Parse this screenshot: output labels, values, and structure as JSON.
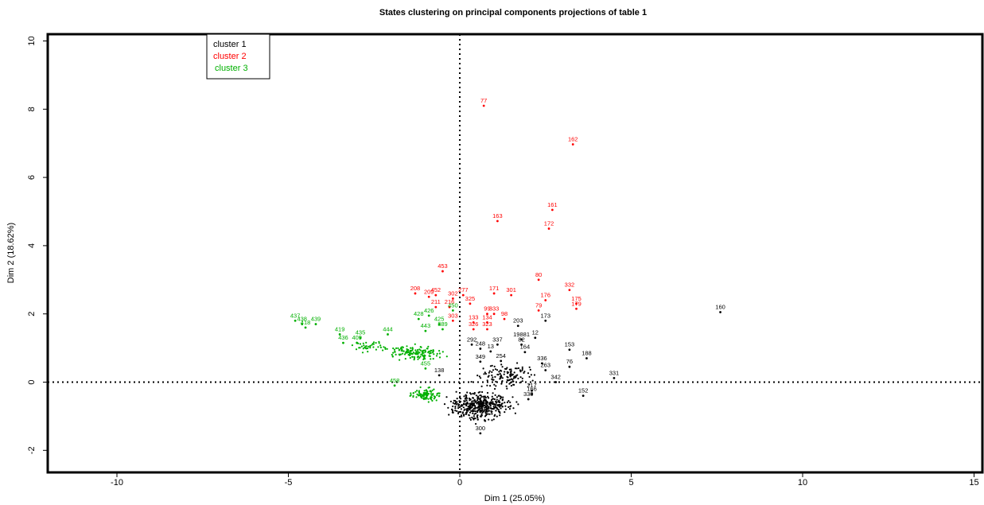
{
  "chart_data": {
    "type": "scatter",
    "title": "States clustering on principal components projections of table 1",
    "xlabel": "Dim 1 (25.05%)",
    "ylabel": "Dim 2 (18.62%)",
    "xlim": [
      -12,
      15
    ],
    "ylim": [
      -2.8,
      10.3
    ],
    "xticks": [
      -10,
      -5,
      0,
      5,
      10,
      15
    ],
    "yticks": [
      -2,
      0,
      2,
      4,
      6,
      8,
      10
    ],
    "legend_position": "top-left",
    "reference_lines": {
      "x": 0,
      "y": 0,
      "style": "dotted"
    },
    "colors": {
      "cluster 1": "#000000",
      "cluster 2": "#ff0000",
      "cluster 3": "#00b000"
    },
    "series": [
      {
        "name": "cluster 1",
        "color": "#000000",
        "points": [
          {
            "label": "160",
            "x": 7.6,
            "y": 2.05
          },
          {
            "label": "331",
            "x": 4.5,
            "y": 0.12
          },
          {
            "label": "152",
            "x": 3.6,
            "y": -0.4
          },
          {
            "label": "188",
            "x": 3.7,
            "y": 0.7
          },
          {
            "label": "153",
            "x": 3.2,
            "y": 0.95
          },
          {
            "label": "76",
            "x": 3.2,
            "y": 0.45
          },
          {
            "label": "342",
            "x": 2.8,
            "y": 0.0
          },
          {
            "label": "173",
            "x": 2.5,
            "y": 1.8
          },
          {
            "label": "12",
            "x": 2.2,
            "y": 1.3
          },
          {
            "label": "203",
            "x": 1.7,
            "y": 1.65
          },
          {
            "label": "19881",
            "x": 1.8,
            "y": 1.25
          },
          {
            "label": "82",
            "x": 1.8,
            "y": 1.1
          },
          {
            "label": "164",
            "x": 1.9,
            "y": 0.88
          },
          {
            "label": "337",
            "x": 1.1,
            "y": 1.1
          },
          {
            "label": "292",
            "x": 0.35,
            "y": 1.1
          },
          {
            "label": "248",
            "x": 0.6,
            "y": 0.98
          },
          {
            "label": "13",
            "x": 0.9,
            "y": 0.9
          },
          {
            "label": "254",
            "x": 1.2,
            "y": 0.62
          },
          {
            "label": "349",
            "x": 0.6,
            "y": 0.6
          },
          {
            "label": "263",
            "x": 2.5,
            "y": 0.35
          },
          {
            "label": "336",
            "x": 2.4,
            "y": 0.55
          },
          {
            "label": "330",
            "x": 2.0,
            "y": -0.5
          },
          {
            "label": "217",
            "x": 2.1,
            "y": -0.25
          },
          {
            "label": "166",
            "x": 2.1,
            "y": -0.35
          },
          {
            "label": "138",
            "x": -0.6,
            "y": 0.2
          },
          {
            "label": "300",
            "x": 0.6,
            "y": -1.5
          }
        ]
      },
      {
        "name": "cluster 2",
        "color": "#ff0000",
        "points": [
          {
            "label": "77",
            "x": 0.7,
            "y": 8.1
          },
          {
            "label": "162",
            "x": 3.3,
            "y": 6.97
          },
          {
            "label": "161",
            "x": 2.7,
            "y": 5.05
          },
          {
            "label": "163",
            "x": 1.1,
            "y": 4.72
          },
          {
            "label": "172",
            "x": 2.6,
            "y": 4.5
          },
          {
            "label": "453",
            "x": -0.5,
            "y": 3.25
          },
          {
            "label": "80",
            "x": 2.3,
            "y": 3.0
          },
          {
            "label": "332",
            "x": 3.2,
            "y": 2.7
          },
          {
            "label": "171",
            "x": 1.0,
            "y": 2.6
          },
          {
            "label": "301",
            "x": 1.5,
            "y": 2.55
          },
          {
            "label": "277",
            "x": 0.1,
            "y": 2.55
          },
          {
            "label": "208",
            "x": -1.3,
            "y": 2.6
          },
          {
            "label": "452",
            "x": -0.7,
            "y": 2.55
          },
          {
            "label": "209",
            "x": -0.9,
            "y": 2.5
          },
          {
            "label": "302",
            "x": -0.2,
            "y": 2.45
          },
          {
            "label": "176",
            "x": 2.5,
            "y": 2.4
          },
          {
            "label": "325",
            "x": 0.3,
            "y": 2.3
          },
          {
            "label": "211",
            "x": -0.7,
            "y": 2.2
          },
          {
            "label": "216",
            "x": -0.3,
            "y": 2.2
          },
          {
            "label": "175",
            "x": 3.4,
            "y": 2.3
          },
          {
            "label": "179",
            "x": 3.4,
            "y": 2.15
          },
          {
            "label": "79",
            "x": 2.3,
            "y": 2.1
          },
          {
            "label": "99",
            "x": 0.8,
            "y": 2.0
          },
          {
            "label": "333",
            "x": 1.0,
            "y": 2.0
          },
          {
            "label": "98",
            "x": 1.3,
            "y": 1.85
          },
          {
            "label": "303",
            "x": -0.2,
            "y": 1.8
          },
          {
            "label": "133",
            "x": 0.4,
            "y": 1.75
          },
          {
            "label": "134",
            "x": 0.8,
            "y": 1.75
          },
          {
            "label": "326",
            "x": 0.4,
            "y": 1.55
          },
          {
            "label": "323",
            "x": 0.8,
            "y": 1.55
          }
        ]
      },
      {
        "name": "cluster 3",
        "color": "#00b000",
        "points": [
          {
            "label": "437",
            "x": -4.8,
            "y": 1.8
          },
          {
            "label": "438",
            "x": -4.6,
            "y": 1.7
          },
          {
            "label": "418",
            "x": -4.5,
            "y": 1.6
          },
          {
            "label": "439",
            "x": -4.2,
            "y": 1.7
          },
          {
            "label": "419",
            "x": -3.5,
            "y": 1.4
          },
          {
            "label": "436",
            "x": -3.4,
            "y": 1.15
          },
          {
            "label": "435",
            "x": -2.9,
            "y": 1.3
          },
          {
            "label": "409",
            "x": -3.0,
            "y": 1.15
          },
          {
            "label": "428",
            "x": -1.2,
            "y": 1.85
          },
          {
            "label": "426",
            "x": -0.9,
            "y": 1.95
          },
          {
            "label": "450",
            "x": -0.2,
            "y": 2.1
          },
          {
            "label": "425",
            "x": -0.6,
            "y": 1.7
          },
          {
            "label": "443",
            "x": -1.0,
            "y": 1.5
          },
          {
            "label": "444",
            "x": -2.1,
            "y": 1.4
          },
          {
            "label": "389",
            "x": -0.5,
            "y": 1.55
          },
          {
            "label": "458",
            "x": -1.9,
            "y": -0.1
          },
          {
            "label": "455",
            "x": -1.0,
            "y": 0.4
          }
        ]
      }
    ]
  },
  "ui": {
    "title": "States clustering on principal components projections of table 1",
    "xlabel": "Dim 1 (25.05%)",
    "ylabel": "Dim 2 (18.62%)",
    "legend": [
      "cluster 1",
      "cluster 2",
      "cluster 3"
    ]
  }
}
